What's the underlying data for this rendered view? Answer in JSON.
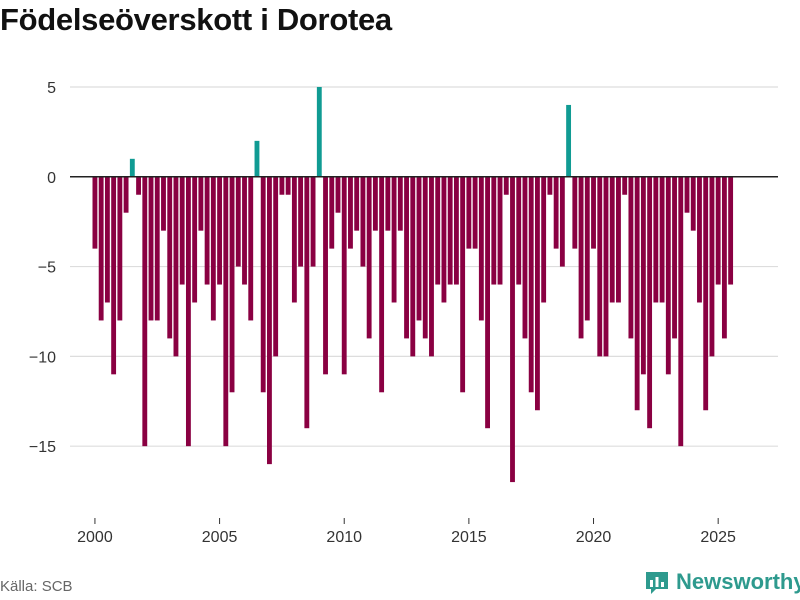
{
  "title": "Födelseöverskott i Dorotea",
  "source": "Källa: SCB",
  "brand": "Newsworthy",
  "colors": {
    "positive": "#109b93",
    "negative": "#8a0042",
    "zero_line": "#222222",
    "grid": "#dddddd",
    "brand": "#2e9a8e"
  },
  "chart_data": {
    "type": "bar",
    "title": "Födelseöverskott i Dorotea",
    "xlabel": "",
    "ylabel": "",
    "x_start": 2000.0,
    "x_step": 0.25,
    "xlim": [
      1999,
      2027.4
    ],
    "ylim": [
      -19,
      5.5
    ],
    "yticks": [
      5,
      0,
      -5,
      -10,
      -15
    ],
    "ytick_labels": [
      "5",
      "0",
      "−5",
      "−10",
      "−15"
    ],
    "xticks": [
      2000,
      2005,
      2010,
      2015,
      2020,
      2025
    ],
    "xtick_labels": [
      "2000",
      "2005",
      "2010",
      "2015",
      "2020",
      "2025"
    ],
    "grid": true,
    "values": [
      -4,
      -8,
      -7,
      -11,
      -8,
      -2,
      1,
      -1,
      -15,
      -8,
      -8,
      -3,
      -9,
      -10,
      -6,
      -15,
      -7,
      -3,
      -6,
      -8,
      -6,
      -15,
      -12,
      -5,
      -6,
      -8,
      2,
      -12,
      -16,
      -10,
      -1,
      -1,
      -7,
      -5,
      -14,
      -5,
      5,
      -11,
      -4,
      -2,
      -11,
      -4,
      -3,
      -5,
      -9,
      -3,
      -12,
      -3,
      -7,
      -3,
      -9,
      -10,
      -8,
      -9,
      -10,
      -6,
      -7,
      -6,
      -6,
      -12,
      -4,
      -4,
      -8,
      -14,
      -6,
      -6,
      -1,
      -17,
      -6,
      -9,
      -12,
      -13,
      -7,
      -1,
      -4,
      -5,
      4,
      -4,
      -9,
      -8,
      -4,
      -10,
      -10,
      -7,
      -7,
      -1,
      -9,
      -13,
      -11,
      -14,
      -7,
      -7,
      -11,
      -9,
      -15,
      -2,
      -3,
      -7,
      -13,
      -10,
      -6,
      -9,
      -6
    ]
  }
}
